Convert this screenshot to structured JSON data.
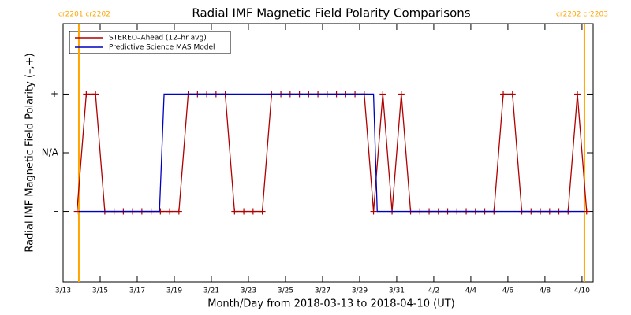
{
  "chart_data": {
    "type": "line",
    "title": "Radial IMF Magnetic Field Polarity Comparisons",
    "xlabel": "Month/Day from 2018-03-13 to 2018-04-10 (UT)",
    "ylabel": "Radial IMF Magnetic Field Polarity (–,+)",
    "xlim": [
      0,
      28.6
    ],
    "xticks": [
      {
        "value": 0,
        "label": "3/13"
      },
      {
        "value": 2,
        "label": "3/15"
      },
      {
        "value": 4,
        "label": "3/17"
      },
      {
        "value": 6,
        "label": "3/19"
      },
      {
        "value": 8,
        "label": "3/21"
      },
      {
        "value": 10,
        "label": "3/23"
      },
      {
        "value": 12,
        "label": "3/25"
      },
      {
        "value": 14,
        "label": "3/27"
      },
      {
        "value": 16,
        "label": "3/29"
      },
      {
        "value": 18,
        "label": "3/31"
      },
      {
        "value": 20,
        "label": "4/2"
      },
      {
        "value": 22,
        "label": "4/4"
      },
      {
        "value": 24,
        "label": "4/6"
      },
      {
        "value": 26,
        "label": "4/8"
      },
      {
        "value": 28,
        "label": "4/10"
      }
    ],
    "ylim": [
      -2.2,
      2.2
    ],
    "yticks": [
      {
        "value": -1,
        "label": "–"
      },
      {
        "value": 0,
        "label": "N/A"
      },
      {
        "value": 1,
        "label": "+"
      }
    ],
    "legend": "upper left",
    "annotations": [
      {
        "text": "cr2201 cr2202",
        "x": 0.85
      },
      {
        "text": "cr2202 cr2203",
        "x": 28.13
      }
    ],
    "annotation_color": "#ffa500",
    "series": [
      {
        "name": "STEREO–Ahead (12–hr avg)",
        "color": "#b00000",
        "markers": true,
        "x": [
          0.75,
          1.25,
          1.75,
          2.25,
          2.75,
          3.25,
          3.75,
          4.25,
          4.75,
          5.25,
          5.75,
          6.25,
          6.75,
          7.25,
          7.75,
          8.25,
          8.75,
          9.25,
          9.75,
          10.25,
          10.75,
          11.25,
          11.75,
          12.25,
          12.75,
          13.25,
          13.75,
          14.25,
          14.75,
          15.25,
          15.75,
          16.25,
          16.75,
          17.25,
          17.75,
          18.25,
          18.75,
          19.25,
          19.75,
          20.25,
          20.75,
          21.25,
          21.75,
          22.25,
          22.75,
          23.25,
          23.75,
          24.25,
          24.75,
          25.25,
          25.75,
          26.25,
          26.75,
          27.25,
          27.75,
          28.25
        ],
        "values": [
          -1,
          1,
          1,
          -1,
          -1,
          -1,
          -1,
          -1,
          -1,
          -1,
          -1,
          -1,
          1,
          1,
          1,
          1,
          1,
          -1,
          -1,
          -1,
          -1,
          1,
          1,
          1,
          1,
          1,
          1,
          1,
          1,
          1,
          1,
          1,
          -1,
          1,
          -1,
          1,
          -1,
          -1,
          -1,
          -1,
          -1,
          -1,
          -1,
          -1,
          -1,
          -1,
          1,
          1,
          -1,
          -1,
          -1,
          -1,
          -1,
          -1,
          1,
          -1
        ]
      },
      {
        "name": "Predictive Science MAS Model",
        "color": "#0000c0",
        "markers": false,
        "x": [
          0.85,
          5.2,
          5.45,
          16.75,
          16.95,
          28.13
        ],
        "values": [
          -1,
          -1,
          1,
          1,
          -1,
          -1
        ]
      }
    ]
  }
}
